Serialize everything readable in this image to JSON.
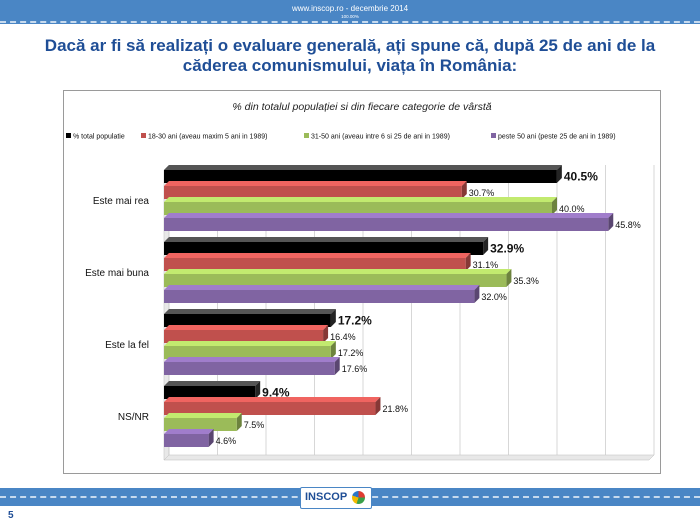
{
  "header": {
    "site": "www.inscop.ro",
    "separator": "-",
    "date": "decembrie 2014",
    "sub": "100.00%"
  },
  "title": {
    "line1": "Dacă ar fi să realizați o evaluare generală, ați spune că, după 25 de ani de la",
    "line2": "căderea comunismului, viața în România:"
  },
  "logo": {
    "text": "INSCOP",
    "icon": "pie-logo-icon"
  },
  "slide_number": "5",
  "colors": {
    "total": "#000000",
    "age_18_30": "#c0504d",
    "age_31_50": "#9bbb59",
    "age_50_plus": "#8064a2",
    "title": "#1f4e96",
    "band": "#4a86c5"
  },
  "chart_data": {
    "type": "bar",
    "orientation": "horizontal",
    "title": "% din totalul populației si din fiecare categorie de vârstă",
    "categories": [
      "Este mai rea",
      "Este mai buna",
      "Este la fel",
      "NS/NR"
    ],
    "series": [
      {
        "name": "% total populatie",
        "values": [
          40.5,
          32.9,
          17.2,
          9.4
        ],
        "color": "#000000"
      },
      {
        "name": "18-30 ani (aveau maxim 5 ani in 1989)",
        "values": [
          30.7,
          31.1,
          16.4,
          21.8
        ],
        "color": "#c0504d"
      },
      {
        "name": "31-50 ani (aveau intre 6 si 25 de ani in 1989)",
        "values": [
          40.0,
          35.3,
          17.2,
          7.5
        ],
        "color": "#9bbb59"
      },
      {
        "name": "peste 50 ani (peste 25 de ani in 1989)",
        "values": [
          45.8,
          32.0,
          17.6,
          4.6
        ],
        "color": "#8064a2"
      }
    ],
    "value_suffix": "%",
    "xlim": [
      0,
      50
    ],
    "grid": true,
    "legend": "top"
  }
}
